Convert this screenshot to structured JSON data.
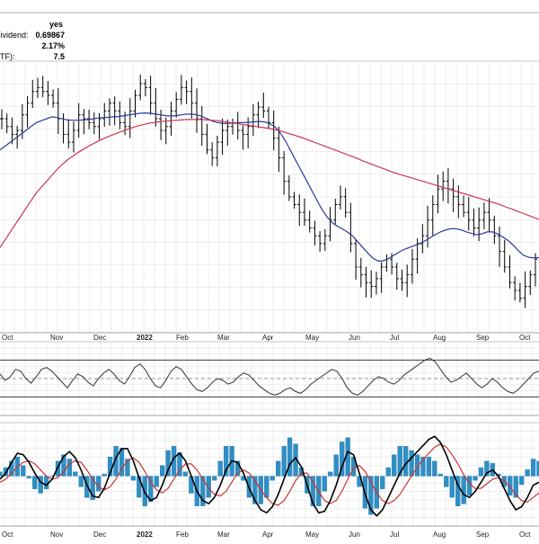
{
  "info_panel": [
    {
      "label": ":",
      "value": "yes"
    },
    {
      "label": "Dividend:",
      "value": "0.69867"
    },
    {
      "label": "",
      "value": "2.17%"
    },
    {
      "label": "ETF):",
      "value": "7.5"
    }
  ],
  "chart_data": [
    {
      "type": "ohlc",
      "panel": "price",
      "x_tick_labels": [
        "Oct",
        "Nov",
        "Dec",
        "2022",
        "Feb",
        "Mar",
        "Apr",
        "May",
        "Jun",
        "Jul",
        "Aug",
        "Sep",
        "Oct"
      ],
      "series": [
        {
          "name": "",
          "style": "ohlc-bars",
          "color": "#000000",
          "values": [
            88,
            86,
            84,
            85,
            89,
            92,
            95,
            96,
            95,
            94,
            92,
            88,
            84,
            82,
            85,
            89,
            88,
            87,
            86,
            88,
            90,
            92,
            90,
            87,
            86,
            90,
            94,
            97,
            96,
            92,
            88,
            85,
            86,
            90,
            93,
            96,
            95,
            92,
            88,
            84,
            80,
            78,
            82,
            85,
            86,
            87,
            85,
            84,
            86,
            89,
            91,
            90,
            87,
            83,
            78,
            72,
            68,
            66,
            64,
            62,
            60,
            58,
            56,
            58,
            62,
            66,
            68,
            64,
            56,
            50,
            48,
            46,
            45,
            47,
            50,
            52,
            50,
            47,
            46,
            48,
            52,
            56,
            58,
            62,
            66,
            70,
            72,
            70,
            68,
            66,
            64,
            62,
            60,
            62,
            64,
            62,
            58,
            54,
            50,
            46,
            44,
            42,
            45,
            48,
            52
          ]
        },
        {
          "name": "",
          "style": "line",
          "color": "#2a3a9a",
          "values": [
            80,
            81,
            82,
            83,
            84,
            85,
            86,
            87,
            87.5,
            88,
            88.5,
            88.3,
            88,
            87.7,
            87.6,
            87.6,
            87.7,
            87.8,
            88,
            88.2,
            88.3,
            88.4,
            88.5,
            88.6,
            88.8,
            89,
            89.2,
            89.4,
            89.5,
            89.4,
            89.2,
            89,
            88.8,
            88.7,
            88.8,
            89,
            89.2,
            89.2,
            89,
            88.6,
            88,
            87.4,
            87,
            86.8,
            86.8,
            86.9,
            87,
            87,
            87.1,
            87.2,
            87.3,
            87.2,
            86.8,
            86,
            84.5,
            82.5,
            80,
            77.5,
            75,
            72.5,
            70,
            67.5,
            65,
            63,
            61.5,
            60.5,
            59.8,
            59,
            58,
            56.5,
            55,
            53.5,
            52.2,
            51.5,
            51.6,
            52.2,
            53,
            53.8,
            54.5,
            55,
            55.5,
            56,
            56.7,
            57.5,
            58.3,
            59,
            59.5,
            59.8,
            59.8,
            59.5,
            59,
            58.6,
            58.3,
            58.5,
            59,
            59,
            58.5,
            57.7,
            56.8,
            55.6,
            54.2,
            53,
            52.5,
            52.3,
            52.4
          ]
        },
        {
          "name": "",
          "style": "line",
          "color": "#cc3355",
          "values": [
            55,
            57,
            59,
            61,
            63,
            65,
            67,
            69,
            70.5,
            72,
            73.5,
            75,
            76.3,
            77.4,
            78.4,
            79.3,
            80.1,
            80.9,
            81.6,
            82.3,
            82.9,
            83.5,
            84,
            84.5,
            85,
            85.5,
            85.9,
            86.3,
            86.6,
            86.9,
            87.1,
            87.3,
            87.4,
            87.5,
            87.6,
            87.7,
            87.8,
            87.8,
            87.8,
            87.8,
            87.7,
            87.6,
            87.5,
            87.3,
            87.1,
            86.9,
            86.7,
            86.5,
            86.3,
            86.1,
            85.9,
            85.7,
            85.5,
            85.2,
            84.9,
            84.5,
            84.1,
            83.7,
            83.3,
            82.8,
            82.3,
            81.8,
            81.3,
            80.8,
            80.3,
            79.8,
            79.3,
            78.8,
            78.3,
            77.8,
            77.2,
            76.7,
            76.2,
            75.7,
            75.2,
            74.7,
            74.2,
            73.8,
            73.4,
            73,
            72.6,
            72.2,
            71.8,
            71.4,
            71,
            70.6,
            70.2,
            69.8,
            69.4,
            69,
            68.6,
            68.2,
            67.8,
            67.4,
            67,
            66.6,
            66.2,
            65.7,
            65.2,
            64.7,
            64.2,
            63.7,
            63.2,
            62.7,
            62.2
          ]
        }
      ]
    },
    {
      "type": "line",
      "panel": "oscillator",
      "reference_lines": [
        70,
        50,
        30
      ],
      "series": [
        {
          "name": "",
          "color": "#333333",
          "values": [
            55,
            48,
            52,
            60,
            58,
            50,
            45,
            52,
            60,
            62,
            58,
            52,
            46,
            40,
            48,
            55,
            52,
            46,
            42,
            50,
            56,
            60,
            55,
            48,
            44,
            52,
            62,
            66,
            60,
            50,
            42,
            40,
            48,
            58,
            63,
            60,
            52,
            44,
            38,
            36,
            40,
            46,
            50,
            48,
            44,
            46,
            52,
            56,
            54,
            48,
            42,
            38,
            34,
            32,
            34,
            38,
            40,
            36,
            34,
            38,
            44,
            48,
            52,
            56,
            60,
            58,
            50,
            40,
            34,
            32,
            36,
            42,
            48,
            52,
            50,
            46,
            44,
            48,
            54,
            58,
            62,
            66,
            70,
            72,
            68,
            60,
            52,
            46,
            48,
            52,
            56,
            50,
            44,
            40,
            44,
            50,
            46,
            40,
            36,
            34,
            38,
            44,
            50,
            56,
            58
          ]
        }
      ]
    },
    {
      "type": "line",
      "panel": "macd",
      "x_tick_labels": [
        "Oct",
        "Nov",
        "Dec",
        "2022",
        "Feb",
        "Mar",
        "Apr",
        "May",
        "Jun",
        "Jul",
        "Aug",
        "Sep",
        "Oct"
      ],
      "series": [
        {
          "name": "",
          "color": "#000000",
          "style": "line",
          "values": [
            -0.2,
            0.2,
            0.9,
            1.5,
            1.4,
            0.9,
            0.2,
            -0.4,
            -0.6,
            -0.2,
            0.6,
            1.3,
            1.6,
            1.2,
            0.4,
            -0.6,
            -1.3,
            -1.4,
            -0.8,
            0.2,
            1.2,
            1.8,
            1.8,
            1.0,
            -0.1,
            -1.1,
            -1.6,
            -1.4,
            -0.6,
            0.4,
            1.2,
            1.5,
            1.0,
            0.0,
            -1.0,
            -1.6,
            -1.8,
            -1.4,
            -0.6,
            0.4,
            1.0,
            0.9,
            0.2,
            -0.8,
            -1.6,
            -2.2,
            -2.4,
            -2.0,
            -1.2,
            -0.2,
            0.8,
            1.2,
            0.6,
            -0.6,
            -1.8,
            -2.4,
            -2.3,
            -1.6,
            -0.6,
            0.6,
            1.6,
            1.4,
            0.2,
            -1.2,
            -2.2,
            -2.6,
            -2.2,
            -1.4,
            -0.6,
            0.2,
            0.8,
            1.2,
            1.6,
            2.0,
            2.4,
            2.6,
            2.2,
            1.4,
            0.4,
            -0.6,
            -1.2,
            -1.4,
            -1.0,
            -0.4,
            0.2,
            0.4,
            0.0,
            -0.8,
            -1.6,
            -2.2,
            -2.0,
            -1.4,
            -0.6,
            -0.4
          ]
        },
        {
          "name": "",
          "color": "#cc3333",
          "style": "line",
          "values": [
            -0.4,
            -0.2,
            0.2,
            0.6,
            0.9,
            1.0,
            0.8,
            0.4,
            0.0,
            -0.2,
            -0.1,
            0.3,
            0.8,
            1.0,
            0.9,
            0.4,
            -0.2,
            -0.7,
            -0.9,
            -0.7,
            -0.2,
            0.5,
            1.0,
            1.2,
            0.9,
            0.3,
            -0.4,
            -0.9,
            -1.1,
            -0.8,
            -0.2,
            0.4,
            0.8,
            0.8,
            0.4,
            -0.2,
            -0.8,
            -1.2,
            -1.3,
            -1.0,
            -0.4,
            0.2,
            0.4,
            0.2,
            -0.3,
            -0.9,
            -1.4,
            -1.8,
            -1.9,
            -1.6,
            -1.0,
            -0.3,
            0.2,
            0.2,
            -0.4,
            -1.0,
            -1.6,
            -1.8,
            -1.6,
            -1.0,
            -0.2,
            0.5,
            0.7,
            0.3,
            -0.4,
            -1.1,
            -1.6,
            -1.8,
            -1.6,
            -1.2,
            -0.6,
            0.0,
            0.6,
            1.1,
            1.5,
            1.9,
            2.1,
            1.9,
            1.4,
            0.8,
            0.1,
            -0.5,
            -0.8,
            -0.8,
            -0.5,
            -0.2,
            -0.1,
            -0.3,
            -0.7,
            -1.2,
            -1.6,
            -1.7,
            -1.4,
            -1.1
          ]
        }
      ],
      "histogram_color": "#2f8fc4"
    }
  ]
}
